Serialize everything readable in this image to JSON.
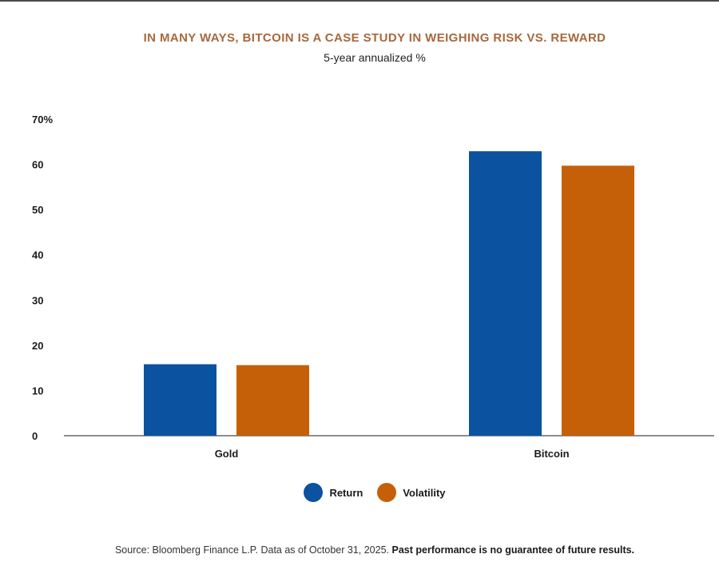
{
  "colors": {
    "title": "#a7683d",
    "return": "#0b52a0",
    "volatility": "#c66008",
    "axis": "#4a4a4a"
  },
  "header": {
    "title": "IN MANY WAYS, BITCOIN IS A CASE STUDY IN WEIGHING RISK VS. REWARD",
    "subtitle": "5-year annualized %"
  },
  "footer": {
    "source_text": "Source: Bloomberg Finance L.P. Data as of October 31, 2025.",
    "disclaimer": "Past performance is no guarantee of future results."
  },
  "chart_data": {
    "type": "bar",
    "title": "IN MANY WAYS, BITCOIN IS A CASE STUDY IN WEIGHING RISK VS. REWARD",
    "subtitle": "5-year annualized %",
    "categories": [
      "Gold",
      "Bitcoin"
    ],
    "series": [
      {
        "name": "Return",
        "values": [
          15.8,
          62.9
        ]
      },
      {
        "name": "Volatility",
        "values": [
          15.6,
          59.7
        ]
      }
    ],
    "ylim": [
      0,
      70
    ],
    "yticks": [
      0,
      10,
      20,
      30,
      40,
      50,
      60,
      70
    ],
    "ytick_labels": [
      "0",
      "10",
      "20",
      "30",
      "40",
      "50",
      "60",
      "70%"
    ],
    "xlabel": "",
    "ylabel": "",
    "grid": false,
    "legend_position": "bottom-center"
  }
}
